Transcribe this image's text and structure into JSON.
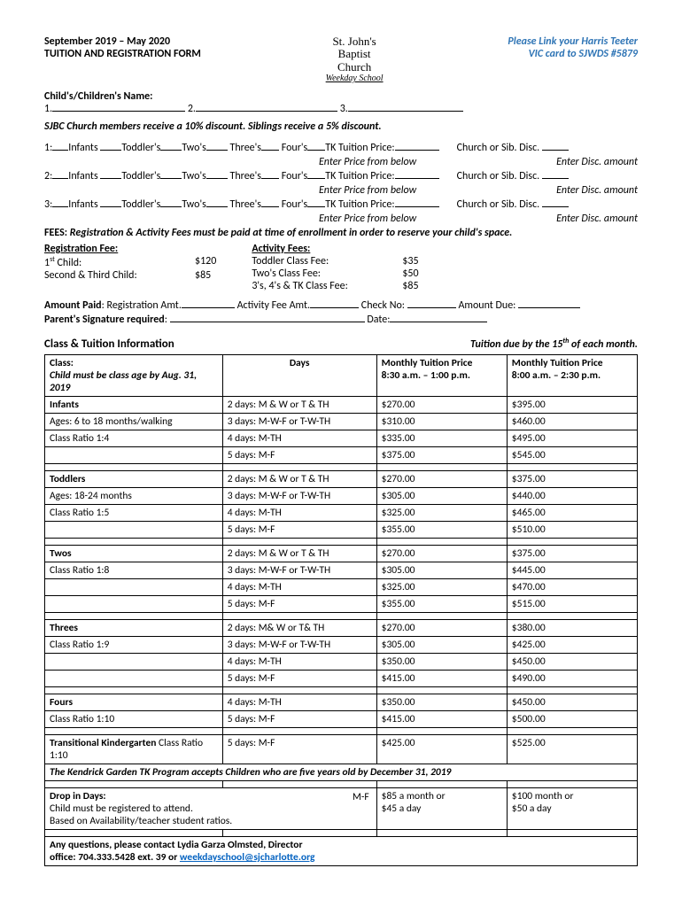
{
  "header": {
    "date_range": "September 2019 – May 2020",
    "title": "TUITION AND REGISTRATION FORM",
    "church_line1": "St. John's",
    "church_line2": "Baptist",
    "church_line3": "Church",
    "church_line4": "Weekday School",
    "link_line1": "Please Link your Harris Teeter",
    "link_line2": "VIC card to SJWDS #5879"
  },
  "child_name": {
    "label": "Child's/Children's Name:",
    "n1": "1.",
    "n2": "2.",
    "n3": "3."
  },
  "discount_note": "SJBC Church members receive a 10% discount. Siblings receive a 5% discount.",
  "enroll_rows": [
    {
      "num": "1:",
      "infants": "Infants",
      "toddlers": "Toddler's",
      "twos": "Two's",
      "threes": "Three's",
      "fours": "Four's",
      "tk": "TK  Tuition Price:",
      "disc": "Church or Sib. Disc.",
      "hint1": "Enter Price from below",
      "hint2": "Enter Disc. amount"
    },
    {
      "num": "2:",
      "infants": "Infants",
      "toddlers": "Toddler's",
      "twos": "Two's",
      "threes": "Three's",
      "fours": "Four's",
      "tk": "TK  Tuition Price:",
      "disc": "Church or Sib. Disc.",
      "hint1": "Enter Price from below",
      "hint2": "Enter Disc. amount"
    },
    {
      "num": "3:",
      "infants": "Infants",
      "toddlers": "Toddler's",
      "twos": "Two's",
      "threes": "Three's",
      "fours": "Four's",
      "tk": "TK  Tuition Price:",
      "disc": "Church or Sib. Disc.",
      "hint1": "Enter Price from below",
      "hint2": "Enter Disc. amount"
    }
  ],
  "fees": {
    "heading": "FEES: Registration & Activity Fees must be paid at time of enrollment in order to reserve your child's space.",
    "reg_title": "Registration Fee:",
    "reg_items": [
      {
        "label_pre": "1",
        "label_sup": "st",
        "label_post": " Child:",
        "amount": "$120"
      },
      {
        "label_pre": "Second & Third Child:",
        "label_sup": "",
        "label_post": "",
        "amount": "$85"
      }
    ],
    "act_title": "Activity Fees:",
    "act_items": [
      {
        "label": "Toddler Class Fee:",
        "amount": "$35"
      },
      {
        "label": "Two's Class Fee:",
        "amount": "$50"
      },
      {
        "label": "3's, 4's & TK Class Fee:",
        "amount": "$85"
      }
    ]
  },
  "amount_paid": {
    "label": "Amount Paid",
    "reg": ": Registration Amt.",
    "act": " Activity Fee Amt.",
    "check": " Check No: ",
    "due": " Amount Due: "
  },
  "signature": {
    "label": "Parent's Signature required",
    "date": "Date:"
  },
  "class_section": {
    "title": "Class & Tuition Information",
    "due_pre": "Tuition due by the 15",
    "due_sup": "th",
    "due_post": " of each month."
  },
  "table": {
    "headers": {
      "class": "Class:",
      "class_note": "Child must be class age by Aug. 31, 2019",
      "days": "Days",
      "price1": "Monthly Tuition Price",
      "time1": "8:30 a.m. – 1:00 p.m.",
      "price2": "Monthly Tuition Price",
      "time2": "8:00 a.m. – 2:30 p.m."
    },
    "groups": [
      {
        "name": "Infants",
        "sub1": "Ages: 6 to 18 months/walking",
        "sub2": "Class Ratio 1:4",
        "rows": [
          {
            "days": "2 days:  M & W or T & TH",
            "p1": "$270.00",
            "p2": "$395.00"
          },
          {
            "days": "3 days:  M-W-F or T-W-TH",
            "p1": "$310.00",
            "p2": "$460.00"
          },
          {
            "days": "4 days: M-TH",
            "p1": "$335.00",
            "p2": "$495.00"
          },
          {
            "days": "5 days: M-F",
            "p1": "$375.00",
            "p2": "$545.00"
          }
        ]
      },
      {
        "name": "Toddlers",
        "sub1": "Ages: 18-24 months",
        "sub2": "Class Ratio 1:5",
        "rows": [
          {
            "days": "2 days:  M & W or T & TH",
            "p1": "$270.00",
            "p2": "$375.00"
          },
          {
            "days": "3 days:  M-W-F or T-W-TH",
            "p1": "$305.00",
            "p2": "$440.00"
          },
          {
            "days": "4 days: M-TH",
            "p1": "$325.00",
            "p2": "$465.00"
          },
          {
            "days": "5 days: M-F",
            "p1": "$355.00",
            "p2": "$510.00"
          }
        ]
      },
      {
        "name": "Twos",
        "sub1": "Class Ratio 1:8",
        "sub2": "",
        "rows": [
          {
            "days": "2 days:  M & W or T & TH",
            "p1": "$270.00",
            "p2": "$375.00"
          },
          {
            "days": "3 days:  M-W-F or T-W-TH",
            "p1": "$305.00",
            "p2": "$445.00"
          },
          {
            "days": "4 days: M-TH",
            "p1": "$325.00",
            "p2": "$470.00"
          },
          {
            "days": "5 days: M-F",
            "p1": "$355.00",
            "p2": "$515.00"
          }
        ]
      },
      {
        "name": "Threes",
        "sub1": "Class Ratio 1:9",
        "sub2": "",
        "rows": [
          {
            "days": "2 days:  M& W or T& TH",
            "p1": "$270.00",
            "p2": "$380.00"
          },
          {
            "days": "3 days:  M-W-F or T-W-TH",
            "p1": "$305.00",
            "p2": "$425.00"
          },
          {
            "days": "4 days: M-TH",
            "p1": "$350.00",
            "p2": "$450.00"
          },
          {
            "days": "5 days: M-F",
            "p1": "$415.00",
            "p2": "$490.00"
          }
        ]
      }
    ],
    "fours": {
      "name": "Fours",
      "sub1": "Class Ratio  1:10",
      "rows": [
        {
          "days": "4 days: M-TH",
          "p1": "$350.00",
          "p2": "$450.00"
        },
        {
          "days": "5 days: M-F",
          "p1": "$415.00",
          "p2": "$500.00"
        }
      ]
    },
    "tk": {
      "name_bold": "Transitional Kindergarten",
      "name_rest": " Class Ratio 1:10",
      "days": "5 days: M-F",
      "p1": "$425.00",
      "p2": "$525.00"
    },
    "tk_note": "The Kendrick Garden TK Program accepts Children who are five years old by December 31, 2019",
    "dropin": {
      "name": "Drop in Days:",
      "sub1": "Child must be registered to attend.",
      "sub2": "Based on Availability/teacher student ratios.",
      "days": "M-F",
      "p1a": "$85 a month or",
      "p1b": "$45 a day",
      "p2a": "$100 month or",
      "p2b": "$50 a day"
    },
    "contact": {
      "line1": "Any questions, please contact Lydia Garza Olmsted, Director",
      "line2_pre": "office: 704.333.5428 ext. 39  or  ",
      "email": "weekdayschool@sjcharlotte.org"
    }
  }
}
